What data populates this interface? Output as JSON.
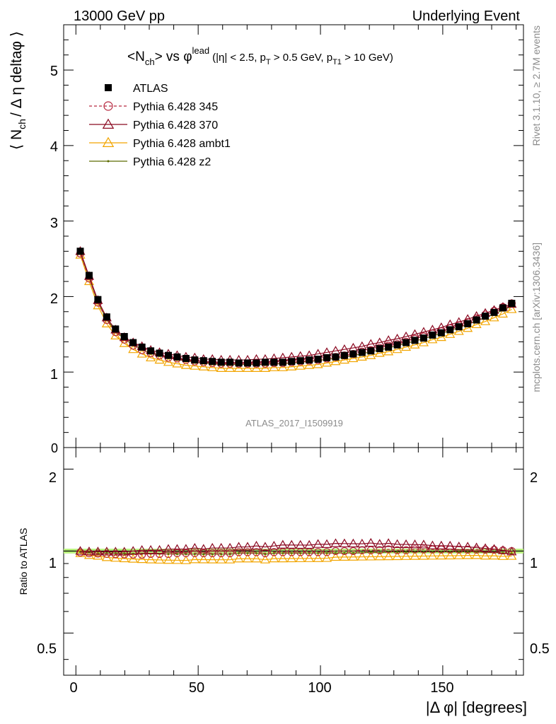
{
  "header": {
    "left": "13000 GeV pp",
    "right": "Underlying Event"
  },
  "side_texts": {
    "rivet": "Rivet 3.1.10, ≥ 2.7M events",
    "mcplots": "mcplots.cern.ch [arXiv:1306.3436]"
  },
  "watermark": "ATLAS_2017_I1509919",
  "plot_title": {
    "main": "<N",
    "sub1": "ch",
    "mid": "> vs φ",
    "sup": "lead",
    "cuts_a": "(|η| < 2.5, p",
    "cuts_sub1": "T",
    "cuts_b": " > 0.5 GeV, p",
    "cuts_sub2": "T1",
    "cuts_c": " > 10 GeV)"
  },
  "ylabel_main": {
    "a": "⟨ N",
    "sub": "ch",
    "b": "/ Δ η deltaφ ⟩"
  },
  "ylabel_ratio": "Ratio to ATLAS",
  "xlabel": "|Δ φ| [degrees]",
  "ticks": {
    "main_y": [
      "0",
      "1",
      "2",
      "3",
      "4",
      "5"
    ],
    "ratio_y_left": [
      "0.5",
      "1",
      "2"
    ],
    "ratio_y_right": [
      "0.5",
      "1",
      "2"
    ],
    "x": [
      "0",
      "50",
      "100",
      "150"
    ]
  },
  "legend": [
    {
      "label": "ATLAS",
      "color": "#000000",
      "marker": "square",
      "dash": "none"
    },
    {
      "label": "Pythia 6.428 345",
      "color": "#b6283f",
      "marker": "circle",
      "dash": "4,3"
    },
    {
      "label": "Pythia 6.428 370",
      "color": "#8b0a22",
      "marker": "triangle",
      "dash": "none"
    },
    {
      "label": "Pythia 6.428 ambt1",
      "color": "#f2a500",
      "marker": "triangle",
      "dash": "none"
    },
    {
      "label": "Pythia 6.428 z2",
      "color": "#5c6b00",
      "marker": "dot",
      "dash": "none"
    }
  ],
  "chart_data": {
    "type": "line",
    "x_label": "|Δ φ| [degrees]",
    "y_label": "⟨ N_ch / Δ η deltaφ ⟩",
    "xlim": [
      -5,
      183
    ],
    "ylim_main": [
      0,
      5.6
    ],
    "ylim_ratio_log": [
      0.35,
      2.4
    ],
    "x": [
      1.8,
      5.4,
      9.0,
      12.6,
      16.2,
      19.8,
      23.4,
      27.0,
      30.6,
      34.2,
      37.8,
      41.4,
      45.0,
      48.6,
      52.2,
      55.8,
      59.4,
      63.0,
      66.6,
      70.2,
      73.8,
      77.4,
      81.0,
      84.6,
      88.2,
      91.8,
      95.4,
      99.0,
      102.6,
      106.2,
      109.8,
      113.4,
      117.0,
      120.6,
      124.2,
      127.8,
      131.4,
      135.0,
      138.6,
      142.2,
      145.8,
      149.4,
      153.0,
      156.6,
      160.2,
      163.8,
      167.4,
      171.0,
      174.6,
      178.2
    ],
    "series": [
      {
        "name": "ATLAS",
        "values": [
          2.6,
          2.28,
          1.96,
          1.73,
          1.57,
          1.47,
          1.39,
          1.33,
          1.28,
          1.25,
          1.22,
          1.2,
          1.18,
          1.16,
          1.15,
          1.14,
          1.13,
          1.13,
          1.12,
          1.12,
          1.12,
          1.13,
          1.13,
          1.13,
          1.14,
          1.15,
          1.16,
          1.17,
          1.19,
          1.2,
          1.22,
          1.24,
          1.26,
          1.28,
          1.31,
          1.33,
          1.36,
          1.39,
          1.42,
          1.45,
          1.49,
          1.52,
          1.56,
          1.6,
          1.64,
          1.69,
          1.74,
          1.79,
          1.85,
          1.91
        ]
      },
      {
        "name": "Pythia 6.428 345",
        "values": [
          2.57,
          2.24,
          1.92,
          1.69,
          1.53,
          1.43,
          1.35,
          1.29,
          1.25,
          1.22,
          1.19,
          1.18,
          1.16,
          1.14,
          1.13,
          1.12,
          1.11,
          1.11,
          1.11,
          1.11,
          1.11,
          1.11,
          1.12,
          1.12,
          1.13,
          1.14,
          1.15,
          1.16,
          1.18,
          1.2,
          1.22,
          1.24,
          1.27,
          1.29,
          1.32,
          1.35,
          1.37,
          1.4,
          1.44,
          1.47,
          1.51,
          1.54,
          1.58,
          1.62,
          1.66,
          1.71,
          1.76,
          1.81,
          1.86,
          1.91
        ]
      },
      {
        "name": "Pythia 6.428 370",
        "values": [
          2.6,
          2.27,
          1.95,
          1.72,
          1.56,
          1.46,
          1.39,
          1.34,
          1.29,
          1.26,
          1.24,
          1.22,
          1.2,
          1.19,
          1.17,
          1.17,
          1.16,
          1.16,
          1.16,
          1.16,
          1.17,
          1.17,
          1.18,
          1.19,
          1.2,
          1.21,
          1.22,
          1.24,
          1.26,
          1.28,
          1.3,
          1.32,
          1.34,
          1.37,
          1.39,
          1.42,
          1.44,
          1.47,
          1.5,
          1.53,
          1.56,
          1.59,
          1.63,
          1.66,
          1.7,
          1.74,
          1.78,
          1.82,
          1.86,
          1.9
        ]
      },
      {
        "name": "Pythia 6.428 ambt1",
        "values": [
          2.55,
          2.2,
          1.88,
          1.64,
          1.48,
          1.38,
          1.3,
          1.24,
          1.19,
          1.16,
          1.13,
          1.11,
          1.09,
          1.08,
          1.07,
          1.06,
          1.05,
          1.05,
          1.05,
          1.05,
          1.05,
          1.05,
          1.06,
          1.06,
          1.07,
          1.08,
          1.09,
          1.1,
          1.12,
          1.14,
          1.16,
          1.18,
          1.2,
          1.22,
          1.25,
          1.27,
          1.3,
          1.33,
          1.36,
          1.39,
          1.43,
          1.46,
          1.5,
          1.54,
          1.58,
          1.63,
          1.67,
          1.72,
          1.77,
          1.83
        ]
      },
      {
        "name": "Pythia 6.428 z2",
        "values": [
          2.58,
          2.25,
          1.92,
          1.7,
          1.54,
          1.44,
          1.36,
          1.3,
          1.25,
          1.22,
          1.19,
          1.17,
          1.15,
          1.13,
          1.12,
          1.11,
          1.1,
          1.1,
          1.1,
          1.1,
          1.1,
          1.1,
          1.11,
          1.11,
          1.12,
          1.13,
          1.14,
          1.15,
          1.17,
          1.18,
          1.2,
          1.22,
          1.24,
          1.27,
          1.29,
          1.32,
          1.35,
          1.38,
          1.41,
          1.44,
          1.48,
          1.51,
          1.55,
          1.59,
          1.63,
          1.68,
          1.72,
          1.77,
          1.82,
          1.87
        ]
      }
    ]
  }
}
